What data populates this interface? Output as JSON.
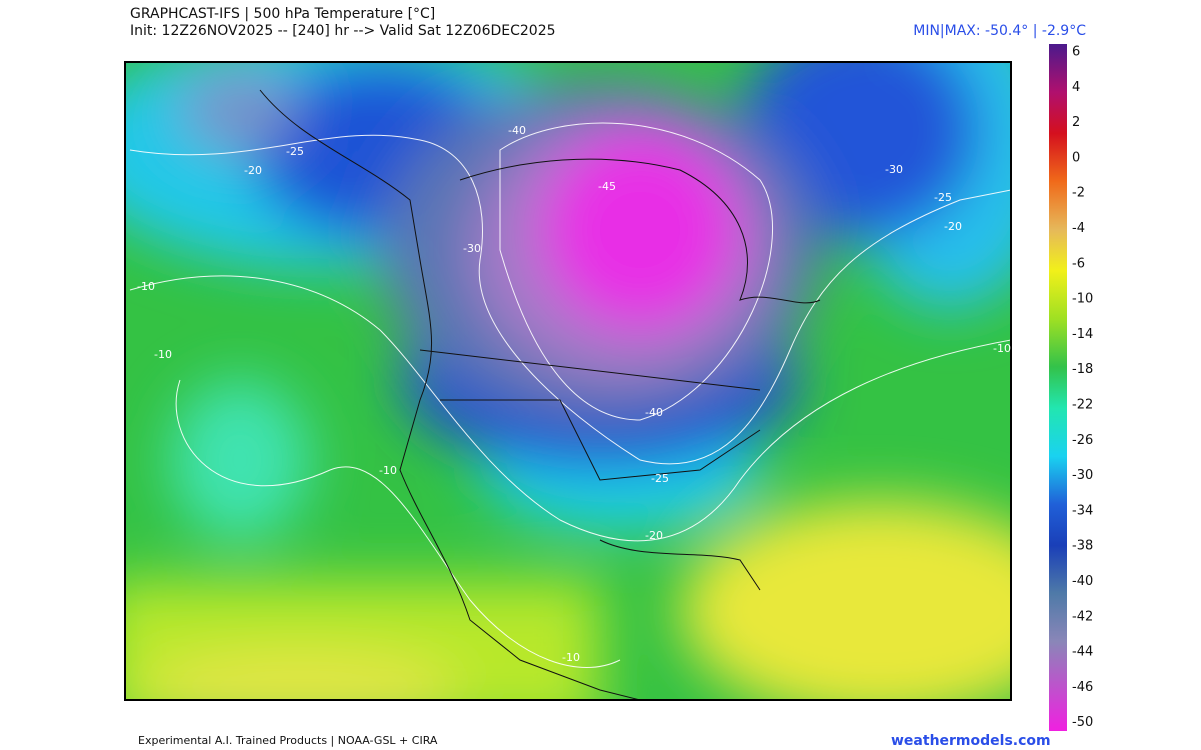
{
  "header": {
    "title": "GRAPHCAST-IFS | 500 hPa Temperature [°C]",
    "subtitle": "Init: 12Z26NOV2025 -- [240] hr --> Valid Sat 12Z06DEC2025",
    "minmax": "MIN|MAX: -50.4° | -2.9°C"
  },
  "colorbar": {
    "labels": [
      6,
      4,
      2,
      0,
      -2,
      -4,
      -6,
      -10,
      -14,
      -18,
      -22,
      -26,
      -30,
      -34,
      -38,
      -40,
      -42,
      -44,
      -46,
      -50
    ]
  },
  "map": {
    "contour_labels": [
      "-25",
      "-20",
      "-10",
      "-10",
      "-40",
      "-45",
      "-30",
      "-30",
      "-25",
      "-20",
      "-10",
      "-40",
      "-10",
      "-25",
      "-20",
      "-10"
    ]
  },
  "footer": {
    "credit": "Experimental A.I. Trained Products | NOAA-GSL + CIRA",
    "site": "weathermodels.com"
  }
}
